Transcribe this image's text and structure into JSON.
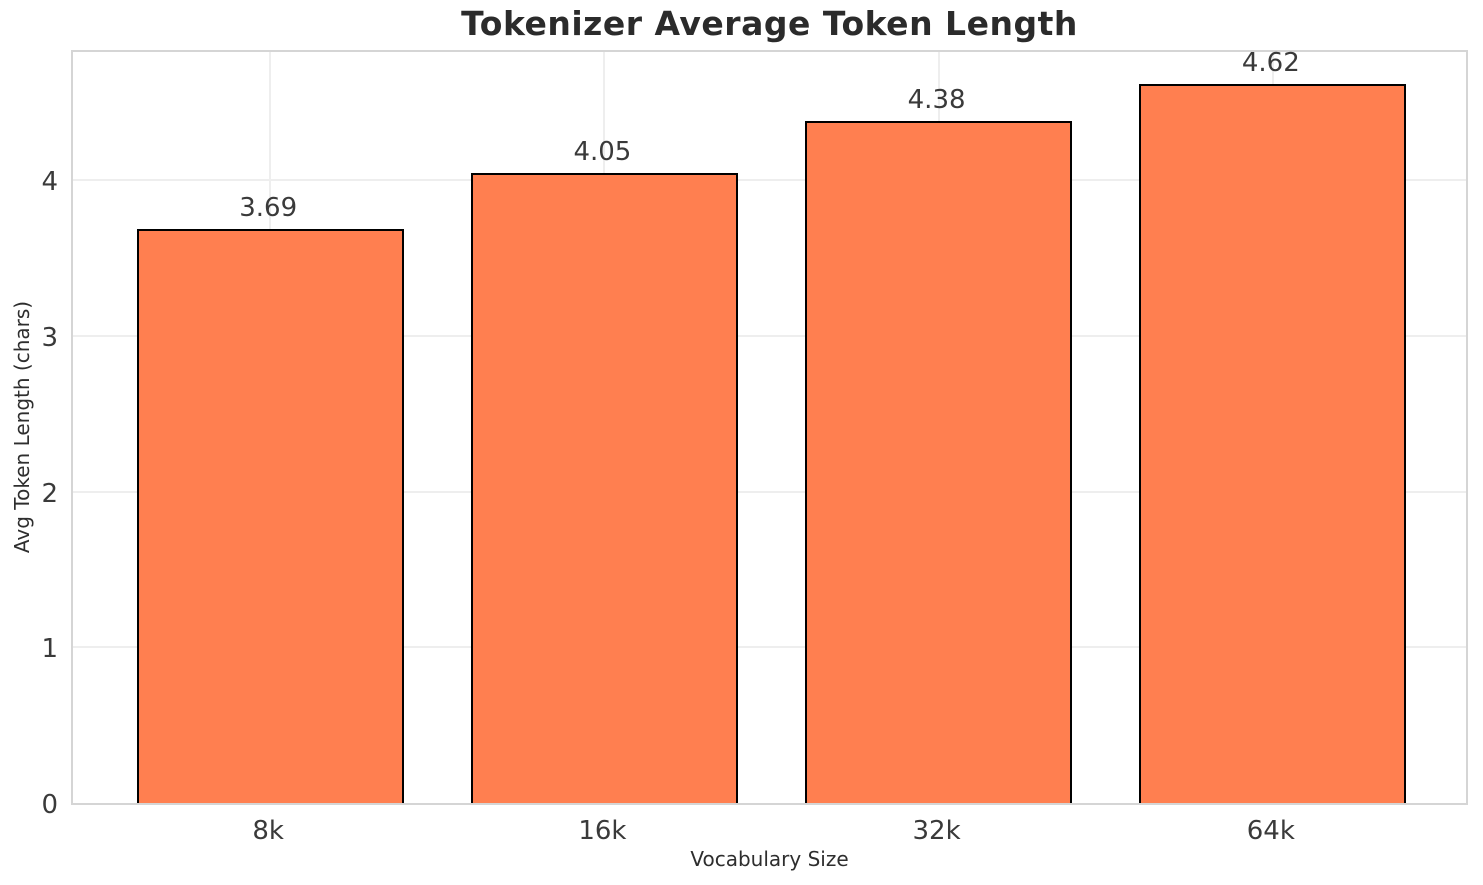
{
  "chart_data": {
    "type": "bar",
    "title": "Tokenizer Average Token Length",
    "xlabel": "Vocabulary Size",
    "ylabel": "Avg Token Length (chars)",
    "categories": [
      "8k",
      "16k",
      "32k",
      "64k"
    ],
    "values": [
      3.69,
      4.05,
      4.38,
      4.62
    ],
    "value_labels": [
      "3.69",
      "4.05",
      "4.38",
      "4.62"
    ],
    "yticks": [
      0,
      1,
      2,
      3,
      4
    ],
    "ytick_labels": [
      "0",
      "1",
      "2",
      "3",
      "4"
    ],
    "ylim": [
      0,
      4.85
    ],
    "grid": "horizontal and vertical light gray gridlines",
    "legend": "none",
    "colors": {
      "bar_fill": "#FF7F50",
      "bar_edge": "#000000",
      "grid": "#eeeeee",
      "spine": "#d5d5d5",
      "title_text": "#2b2b2b",
      "tick_text": "#3a3a3a",
      "axis_label_text": "#2e2e2e",
      "background": "#ffffff"
    }
  }
}
